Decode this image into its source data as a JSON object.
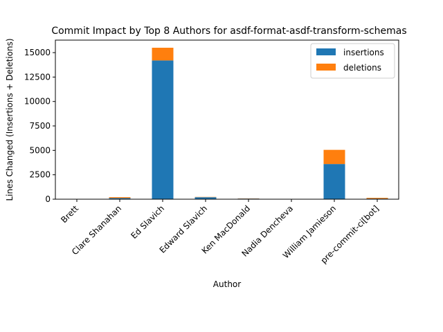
{
  "chart_data": {
    "type": "bar",
    "stacked": true,
    "title": "Commit Impact by Top 8 Authors for asdf-format-asdf-transform-schemas",
    "xlabel": "Author",
    "ylabel": "Lines Changed (Insertions + Deletions)",
    "categories": [
      "Brett",
      "Clare Shanahan",
      "Ed Slavich",
      "Edward Slavich",
      "Ken MacDonald",
      "Nadia Dencheva",
      "William Jamieson",
      "pre-commit-ci[bot]"
    ],
    "series": [
      {
        "name": "insertions",
        "color": "#1f77b4",
        "values": [
          5,
          120,
          14200,
          200,
          60,
          10,
          3600,
          60
        ]
      },
      {
        "name": "deletions",
        "color": "#ff7f0e",
        "values": [
          2,
          90,
          1300,
          30,
          20,
          5,
          1450,
          80
        ]
      }
    ],
    "ylim": [
      0,
      16280
    ],
    "yticks": [
      0,
      2500,
      5000,
      7500,
      10000,
      12500,
      15000
    ],
    "legend_position": "top-right",
    "grid": false
  }
}
